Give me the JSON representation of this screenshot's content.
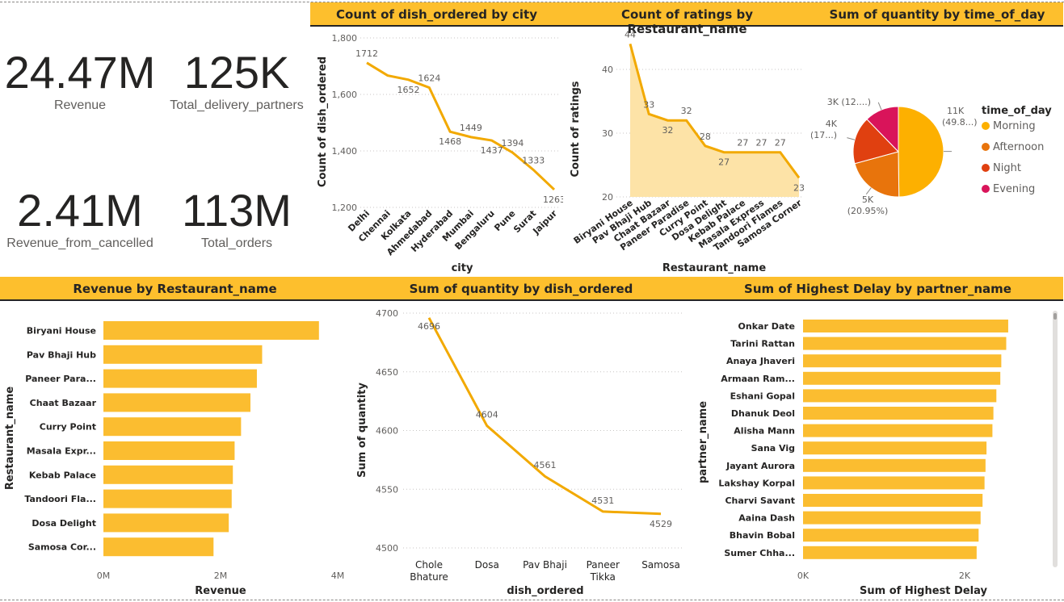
{
  "kpis": {
    "revenue": {
      "value": "24.47M",
      "label": "Revenue"
    },
    "partners": {
      "value": "125K",
      "label": "Total_delivery_partners"
    },
    "cancelled": {
      "value": "2.41M",
      "label": "Revenue_from_cancelled"
    },
    "orders": {
      "value": "113M",
      "label": "Total_orders"
    }
  },
  "colors": {
    "accent": "#fdbf2d",
    "line": "#f2a900",
    "bar": "#fbbd30"
  },
  "chart_data": [
    {
      "type": "line",
      "title": "Count of dish_ordered by city",
      "xlabel": "city",
      "ylabel": "Count of dish_ordered",
      "categories": [
        "Delhi",
        "Chennai",
        "Kolkata",
        "Ahmedabad",
        "Hyderabad",
        "Mumbai",
        "Bengaluru",
        "Pune",
        "Surat",
        "Jaipur"
      ],
      "values": [
        1712,
        1667,
        1652,
        1624,
        1468,
        1449,
        1437,
        1394,
        1333,
        1263
      ],
      "data_labels": [
        "1712",
        "",
        "1652",
        "1624",
        "1468",
        "1449",
        "1437",
        "1394",
        "1333",
        "1263"
      ],
      "yticks": [
        "1,200",
        "1,400",
        "1,600",
        "1,800"
      ],
      "ylim": [
        1200,
        1800
      ]
    },
    {
      "type": "area",
      "title": "Count of ratings by Restaurant_name",
      "xlabel": "Restaurant_name",
      "ylabel": "Count of ratings",
      "categories": [
        "Biryani House",
        "Pav Bhaji Hub",
        "Chaat Bazaar",
        "Paneer Paradise",
        "Curry Point",
        "Dosa Delight",
        "Kebab Palace",
        "Masala Express",
        "Tandoori Flames",
        "Samosa Corner"
      ],
      "values": [
        44,
        33,
        32,
        32,
        28,
        27,
        27,
        27,
        27,
        23
      ],
      "yticks": [
        "20",
        "30",
        "40"
      ],
      "ylim": [
        20,
        46
      ]
    },
    {
      "type": "pie",
      "title": "Sum of quantity by time_of_day",
      "legend_title": "time_of_day",
      "legend_position": "right",
      "slices": [
        {
          "name": "Morning",
          "value": 49.8,
          "label1": "11K",
          "label2": "(49.8...)",
          "color": "#fdb000"
        },
        {
          "name": "Afternoon",
          "value": 20.95,
          "label1": "5K",
          "label2": "(20.95%)",
          "color": "#e8740c"
        },
        {
          "name": "Night",
          "value": 17.0,
          "label1": "4K",
          "label2": "(17...)",
          "color": "#e04010"
        },
        {
          "name": "Evening",
          "value": 12.25,
          "label1": "3K (12....)",
          "label2": "",
          "color": "#d9145a"
        }
      ]
    },
    {
      "type": "bar",
      "title": "Revenue by Restaurant_name",
      "xlabel": "Revenue",
      "ylabel": "Restaurant_name",
      "categories": [
        "Biryani House",
        "Pav Bhaji Hub",
        "Paneer Para...",
        "Chaat Bazaar",
        "Curry Point",
        "Masala Expr...",
        "Kebab Palace",
        "Tandoori Fla...",
        "Dosa Delight",
        "Samosa Cor..."
      ],
      "values": [
        3.68,
        2.71,
        2.62,
        2.51,
        2.35,
        2.24,
        2.21,
        2.19,
        2.14,
        1.88
      ],
      "xticks": [
        "0M",
        "2M",
        "4M"
      ],
      "xlim": [
        0,
        4
      ]
    },
    {
      "type": "line",
      "title": "Sum of quantity by dish_ordered",
      "xlabel": "dish_ordered",
      "ylabel": "Sum of quantity",
      "categories": [
        "Chole Bhature",
        "Dosa",
        "Pav Bhaji",
        "Paneer Tikka",
        "Samosa"
      ],
      "category_lines": [
        [
          "Chole",
          "Bhature"
        ],
        [
          "Dosa"
        ],
        [
          "Pav Bhaji"
        ],
        [
          "Paneer",
          "Tikka"
        ],
        [
          "Samosa"
        ]
      ],
      "values": [
        4696,
        4604,
        4561,
        4531,
        4529
      ],
      "data_labels": [
        "4696",
        "4604",
        "4561",
        "4531",
        "4529"
      ],
      "yticks": [
        "4500",
        "4550",
        "4600",
        "4650",
        "4700"
      ],
      "ylim": [
        4500,
        4700
      ]
    },
    {
      "type": "bar",
      "title": "Sum of Highest Delay by partner_name",
      "xlabel": "Sum of Highest Delay",
      "ylabel": "partner_name",
      "categories": [
        "Onkar Date",
        "Tarini Rattan",
        "Anaya Jhaveri",
        "Armaan Ram...",
        "Eshani Gopal",
        "Dhanuk Deol",
        "Alisha Mann",
        "Sana Vig",
        "Jayant Aurora",
        "Lakshay Korpal",
        "Charvi Savant",
        "Aaina Dash",
        "Bhavin Bobal",
        "Sumer Chha..."
      ],
      "values": [
        2080,
        2060,
        2010,
        2000,
        1960,
        1930,
        1920,
        1860,
        1850,
        1840,
        1820,
        1800,
        1780,
        1760
      ],
      "xticks": [
        "0K",
        "2K"
      ],
      "xlim": [
        0,
        2400
      ]
    }
  ]
}
